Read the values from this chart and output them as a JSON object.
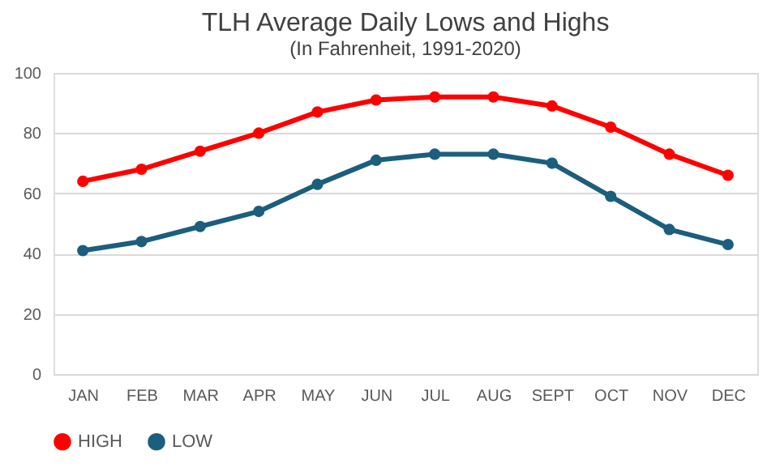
{
  "chart_data": {
    "type": "line",
    "title": "TLH Average Daily Lows and Highs",
    "subtitle": "(In Fahrenheit, 1991-2020)",
    "categories": [
      "JAN",
      "FEB",
      "MAR",
      "APR",
      "MAY",
      "JUN",
      "JUL",
      "AUG",
      "SEPT",
      "OCT",
      "NOV",
      "DEC"
    ],
    "series": [
      {
        "name": "HIGH",
        "color": "#ff0000",
        "values": [
          64,
          68,
          74,
          80,
          87,
          91,
          92,
          92,
          89,
          82,
          73,
          66
        ]
      },
      {
        "name": "LOW",
        "color": "#1b5e7e",
        "values": [
          41,
          44,
          49,
          54,
          63,
          71,
          73,
          73,
          70,
          59,
          48,
          43
        ]
      }
    ],
    "ylim": [
      0,
      100
    ],
    "yticks": [
      0,
      20,
      40,
      60,
      80,
      100
    ],
    "grid": "y",
    "legend": "bottom",
    "marker": "circle",
    "line_style": "solid"
  }
}
